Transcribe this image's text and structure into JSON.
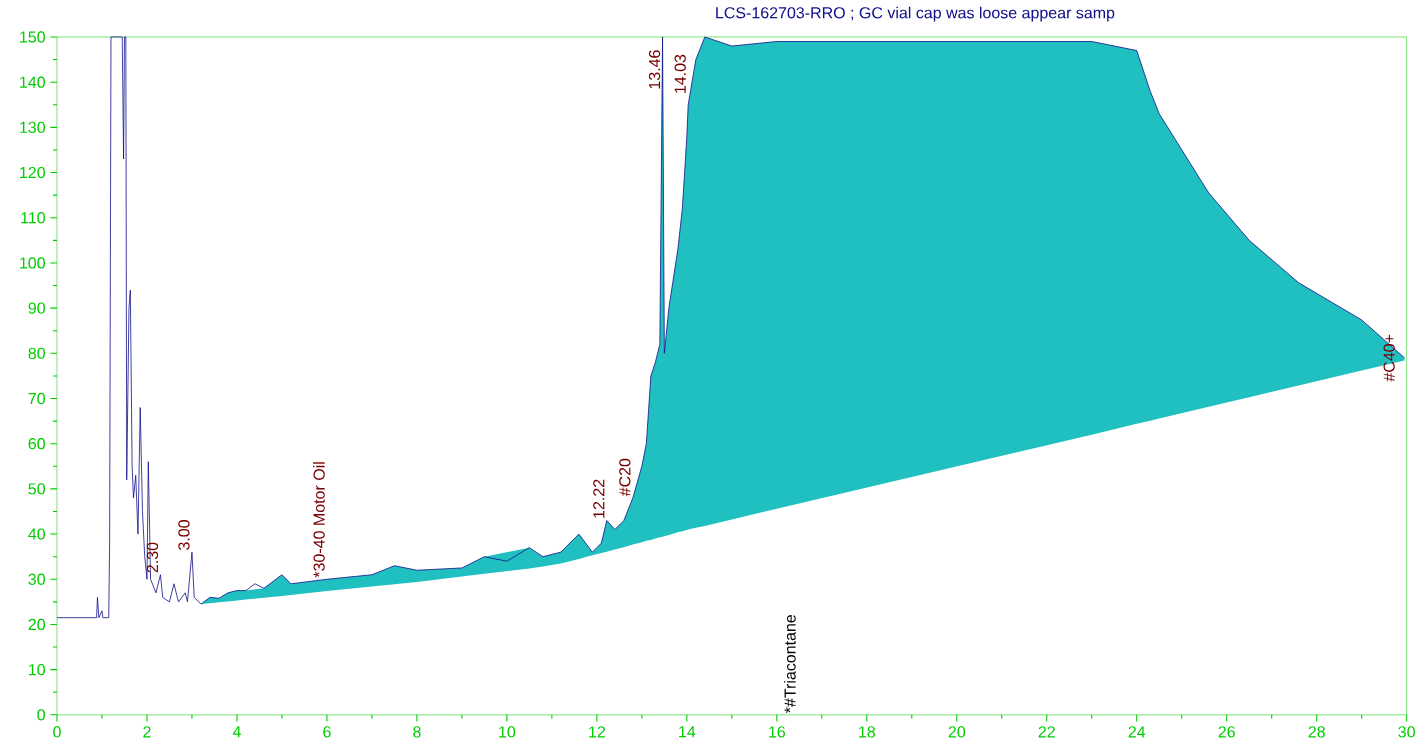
{
  "chart_data": {
    "type": "line",
    "title": "LCS-162703-RRO ; GC vial cap was loose appear samp",
    "xlim": [
      0,
      30
    ],
    "ylim": [
      0,
      150
    ],
    "xticks": [
      0,
      2,
      4,
      6,
      8,
      10,
      12,
      14,
      16,
      18,
      20,
      22,
      24,
      26,
      28,
      30
    ],
    "yticks": [
      0,
      10,
      20,
      30,
      40,
      50,
      60,
      70,
      80,
      90,
      100,
      110,
      120,
      130,
      140,
      150
    ],
    "series": [
      {
        "color": "#10108a",
        "x": [
          0,
          0.88,
          0.9,
          0.93,
          1.0,
          1.02,
          1.15,
          1.17,
          1.2,
          1.45,
          1.48,
          1.5,
          1.53,
          1.55,
          1.6,
          1.63,
          1.67,
          1.7,
          1.75,
          1.8,
          1.85,
          1.9,
          1.95,
          2.0,
          2.03,
          2.08,
          2.2,
          2.3,
          2.35,
          2.5,
          2.6,
          2.7,
          2.85,
          2.9,
          3.0,
          3.05,
          3.2,
          3.4,
          3.6,
          3.8,
          4.0,
          4.2,
          4.4,
          4.6,
          5.0,
          5.2,
          6,
          7,
          7.5,
          8,
          9,
          9.5,
          10,
          10.5,
          10.8,
          11.2,
          11.6,
          11.9,
          12.1,
          12.22,
          12.4,
          12.6,
          12.8,
          13.0,
          13.1,
          13.2,
          13.3,
          13.4,
          13.46,
          13.5,
          13.6,
          13.8,
          13.9,
          14.0,
          14.03,
          14.2,
          14.4,
          15,
          16,
          20,
          23,
          24,
          24.3,
          24.5,
          25.6,
          26.5,
          27.6,
          29.0,
          29.95
        ],
        "values": [
          21.5,
          21.5,
          26,
          21.5,
          23,
          21.5,
          21.5,
          38,
          150,
          150,
          123,
          150,
          150,
          52,
          90,
          94,
          55,
          48,
          53,
          40,
          68,
          45,
          35,
          30,
          56,
          30,
          27,
          31,
          26,
          25,
          29,
          25,
          27,
          25,
          36,
          26,
          24.5,
          26,
          25.8,
          27,
          27.5,
          27.5,
          29,
          28,
          31,
          29,
          30,
          31,
          33,
          32,
          32.5,
          35,
          34,
          37,
          35,
          36,
          40,
          36,
          38,
          43,
          41,
          43,
          48,
          55,
          60,
          75,
          78,
          82,
          150,
          80,
          90,
          103,
          112,
          128,
          135,
          145,
          150,
          148,
          149,
          149,
          149,
          147,
          138,
          133,
          115.5,
          105,
          95.6,
          87.4,
          79
        ],
        "lower": [
          null,
          null,
          null,
          null,
          null,
          null,
          null,
          null,
          null,
          null,
          null,
          null,
          null,
          null,
          null,
          null,
          null,
          null,
          null,
          null,
          null,
          null,
          null,
          null,
          null,
          null,
          null,
          null,
          null,
          null,
          null,
          null,
          null,
          null,
          null,
          null,
          24.5,
          24.7,
          24.9,
          25.1,
          25.3,
          25.5,
          null,
          25.9,
          26.3,
          26.5,
          27.4,
          28.4,
          28.9,
          29.4,
          30.6,
          31.2,
          null,
          32.4,
          32.8,
          33.5,
          34.5,
          35.3,
          35.8,
          36.1,
          36.6,
          37.1,
          37.7,
          38.2,
          38.5,
          38.7,
          39,
          39.3,
          39.4,
          39.5,
          39.8,
          40.4,
          40.6,
          40.9,
          41,
          41.4,
          41.8,
          43.2,
          45.6,
          null,
          62,
          64.4,
          65.1,
          65.6,
          68.2,
          70.3,
          72.9,
          76.2,
          78.4
        ],
        "upper": [
          null,
          null,
          null,
          null,
          null,
          null,
          null,
          null,
          null,
          null,
          null,
          null,
          null,
          null,
          null,
          null,
          null,
          null,
          null,
          null,
          null,
          null,
          null,
          null,
          null,
          null,
          null,
          null,
          null,
          null,
          null,
          null,
          null,
          null,
          null,
          null,
          24.5,
          26,
          25.8,
          27,
          27.5,
          27.5,
          null,
          28,
          31,
          29,
          30,
          31,
          33,
          32,
          32.5,
          35,
          null,
          37,
          35,
          36,
          40,
          36,
          38,
          43,
          41,
          43,
          48,
          55,
          60,
          75,
          78,
          82,
          150,
          80,
          90,
          103,
          112,
          128,
          135,
          145,
          150,
          148,
          149,
          null,
          149,
          147,
          138,
          133,
          115.5,
          105,
          95.6,
          87.4,
          79
        ]
      }
    ],
    "annotations": [
      {
        "text": "2.30",
        "x": 2.3,
        "y": 31
      },
      {
        "text": "3.00",
        "x": 3.0,
        "y": 36
      },
      {
        "text": "*30-40 Motor Oil",
        "x": 6,
        "y": 30
      },
      {
        "text": "12.22",
        "x": 12.22,
        "y": 43
      },
      {
        "text": "#C20",
        "x": 12.8,
        "y": 48
      },
      {
        "text": "13.46",
        "x": 13.46,
        "y": 138
      },
      {
        "text": "14.03",
        "x": 14.03,
        "y": 137
      },
      "*#Triacontane",
      {
        "text": "#C40+",
        "x": 29.95,
        "y": 79
      }
    ]
  }
}
